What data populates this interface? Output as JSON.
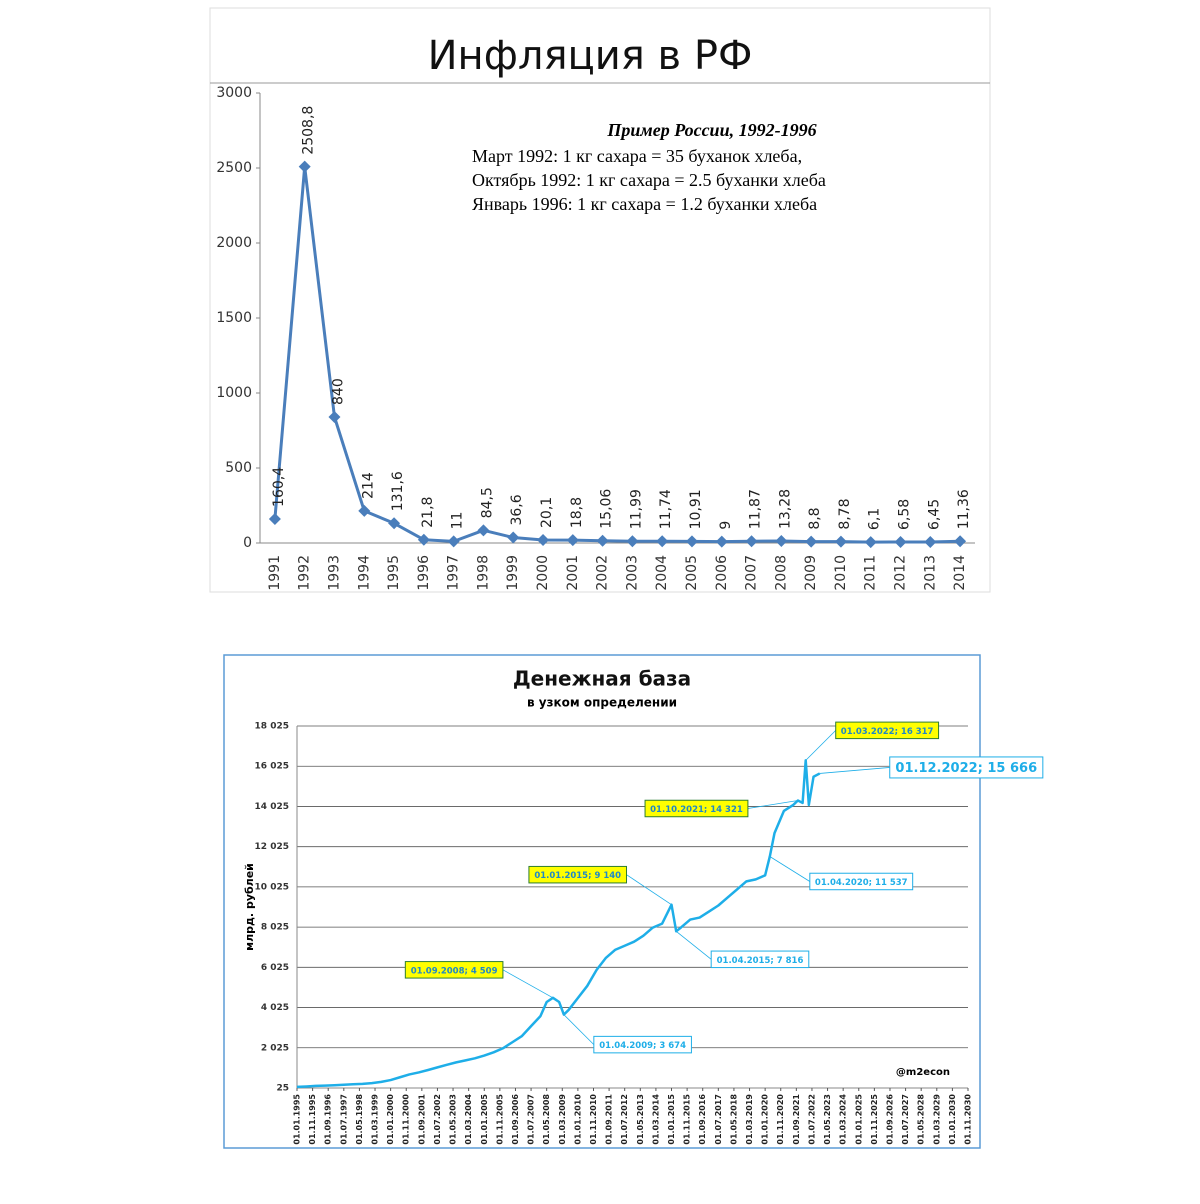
{
  "chart_data": [
    {
      "type": "line",
      "title": "Инфляция в РФ",
      "categories": [
        "1991",
        "1992",
        "1993",
        "1994",
        "1995",
        "1996",
        "1997",
        "1998",
        "1999",
        "2000",
        "2001",
        "2002",
        "2003",
        "2004",
        "2005",
        "2006",
        "2007",
        "2008",
        "2009",
        "2010",
        "2011",
        "2012",
        "2013",
        "2014"
      ],
      "series": [
        {
          "color": "#4a7ebb",
          "values": [
            160.4,
            2508.8,
            840,
            214,
            131.6,
            21.8,
            11,
            84.5,
            36.6,
            20.1,
            18.8,
            15.06,
            11.99,
            11.74,
            10.91,
            9,
            11.87,
            13.28,
            8.8,
            8.78,
            6.1,
            6.58,
            6.45,
            11.36
          ],
          "value_labels": [
            "160,4",
            "2508,8",
            "840",
            "214",
            "131,6",
            "21,8",
            "11",
            "84,5",
            "36,6",
            "20,1",
            "18,8",
            "15,06",
            "11,99",
            "11,74",
            "10,91",
            "9",
            "11,87",
            "13,28",
            "8,8",
            "8,78",
            "6,1",
            "6,58",
            "6,45",
            "11,36"
          ]
        }
      ],
      "marker": "diamond",
      "ylim": [
        0,
        3000
      ],
      "yticks": [
        0,
        500,
        1000,
        1500,
        2000,
        2500,
        3000
      ],
      "grid": false,
      "annotation": {
        "title": "Пример России, 1992-1996",
        "lines": [
          "Март 1992: 1 кг сахара  = 35 буханок хлеба,",
          "Октябрь 1992: 1 кг сахара = 2.5 буханки хлеба",
          "Январь 1996: 1 кг сахара = 1.2 буханки хлеба"
        ]
      }
    },
    {
      "type": "line",
      "title": "Денежная база",
      "subtitle": "в узком определении",
      "y_label": "млрд. рублей",
      "xlim": [
        "01.01.1995",
        "01.11.2030"
      ],
      "xticks": [
        "01.01.1995",
        "01.11.1995",
        "01.09.1996",
        "01.07.1997",
        "01.05.1998",
        "01.03.1999",
        "01.01.2000",
        "01.11.2000",
        "01.09.2001",
        "01.07.2002",
        "01.05.2003",
        "01.03.2004",
        "01.01.2005",
        "01.11.2005",
        "01.09.2006",
        "01.07.2007",
        "01.05.2008",
        "01.03.2009",
        "01.01.2010",
        "01.11.2010",
        "01.09.2011",
        "01.07.2012",
        "01.05.2013",
        "01.03.2014",
        "01.01.2015",
        "01.11.2015",
        "01.09.2016",
        "01.07.2017",
        "01.05.2018",
        "01.03.2019",
        "01.01.2020",
        "01.11.2020",
        "01.09.2021",
        "01.07.2022",
        "01.05.2023",
        "01.03.2024",
        "01.01.2025",
        "01.11.2025",
        "01.09.2026",
        "01.07.2027",
        "01.05.2028",
        "01.03.2029",
        "01.01.2030",
        "01.11.2030"
      ],
      "ylim": [
        25,
        18025
      ],
      "yticks": [
        {
          "value": 25,
          "label": "25"
        },
        {
          "value": 2025,
          "label": "2 025"
        },
        {
          "value": 4025,
          "label": "4 025"
        },
        {
          "value": 6025,
          "label": "6 025"
        },
        {
          "value": 8025,
          "label": "8 025"
        },
        {
          "value": 10025,
          "label": "10 025"
        },
        {
          "value": 12025,
          "label": "12 025"
        },
        {
          "value": 14025,
          "label": "14 025"
        },
        {
          "value": 16025,
          "label": "16 025"
        },
        {
          "value": 18025,
          "label": "18 025"
        }
      ],
      "grid": true,
      "series": [
        {
          "color": "#1eaee8",
          "x": [
            "01.01.1995",
            "01.07.1995",
            "01.01.1996",
            "01.07.1996",
            "01.01.1997",
            "01.07.1997",
            "01.01.1998",
            "01.07.1998",
            "01.01.1999",
            "01.07.1999",
            "01.01.2000",
            "01.07.2000",
            "01.01.2001",
            "01.07.2001",
            "01.01.2002",
            "01.07.2002",
            "01.01.2003",
            "01.07.2003",
            "01.01.2004",
            "01.07.2004",
            "01.01.2005",
            "01.07.2005",
            "01.01.2006",
            "01.07.2006",
            "01.01.2007",
            "01.07.2007",
            "01.01.2008",
            "01.05.2008",
            "01.09.2008",
            "01.01.2009",
            "01.04.2009",
            "01.07.2009",
            "01.01.2010",
            "01.07.2010",
            "01.01.2011",
            "01.07.2011",
            "01.01.2012",
            "01.07.2012",
            "01.01.2013",
            "01.07.2013",
            "01.01.2014",
            "01.07.2014",
            "01.01.2015",
            "01.04.2015",
            "01.07.2015",
            "01.01.2016",
            "01.07.2016",
            "01.01.2017",
            "01.07.2017",
            "01.01.2018",
            "01.07.2018",
            "01.01.2019",
            "01.07.2019",
            "01.01.2020",
            "01.04.2020",
            "01.07.2020",
            "01.01.2021",
            "01.07.2021",
            "01.10.2021",
            "01.01.2022",
            "01.03.2022",
            "01.05.2022",
            "01.08.2022",
            "01.12.2022"
          ],
          "values": [
            80,
            100,
            130,
            145,
            160,
            185,
            210,
            230,
            270,
            330,
            420,
            560,
            700,
            800,
            920,
            1050,
            1180,
            1300,
            1400,
            1500,
            1640,
            1800,
            2000,
            2300,
            2600,
            3100,
            3600,
            4300,
            4509,
            4300,
            3674,
            3900,
            4500,
            5100,
            5900,
            6500,
            6900,
            7100,
            7300,
            7600,
            8000,
            8200,
            9140,
            7816,
            8000,
            8400,
            8500,
            8800,
            9100,
            9500,
            9900,
            10300,
            10400,
            10600,
            11537,
            12700,
            13800,
            14100,
            14321,
            14200,
            16317,
            14100,
            15500,
            15666
          ]
        }
      ],
      "callouts": [
        {
          "label": "01.09.2008; 4 509",
          "highlight": true
        },
        {
          "label": "01.04.2009; 3 674",
          "highlight": false
        },
        {
          "label": "01.01.2015; 9 140",
          "highlight": true
        },
        {
          "label": "01.04.2015; 7 816",
          "highlight": false
        },
        {
          "label": "01.04.2020; 11 537",
          "highlight": false
        },
        {
          "label": "01.10.2021; 14 321",
          "highlight": true
        },
        {
          "label": "01.03.2022; 16 317",
          "highlight": true
        },
        {
          "label": "01.12.2022; 15 666",
          "highlight": false
        }
      ],
      "watermark": "@m2econ"
    }
  ]
}
